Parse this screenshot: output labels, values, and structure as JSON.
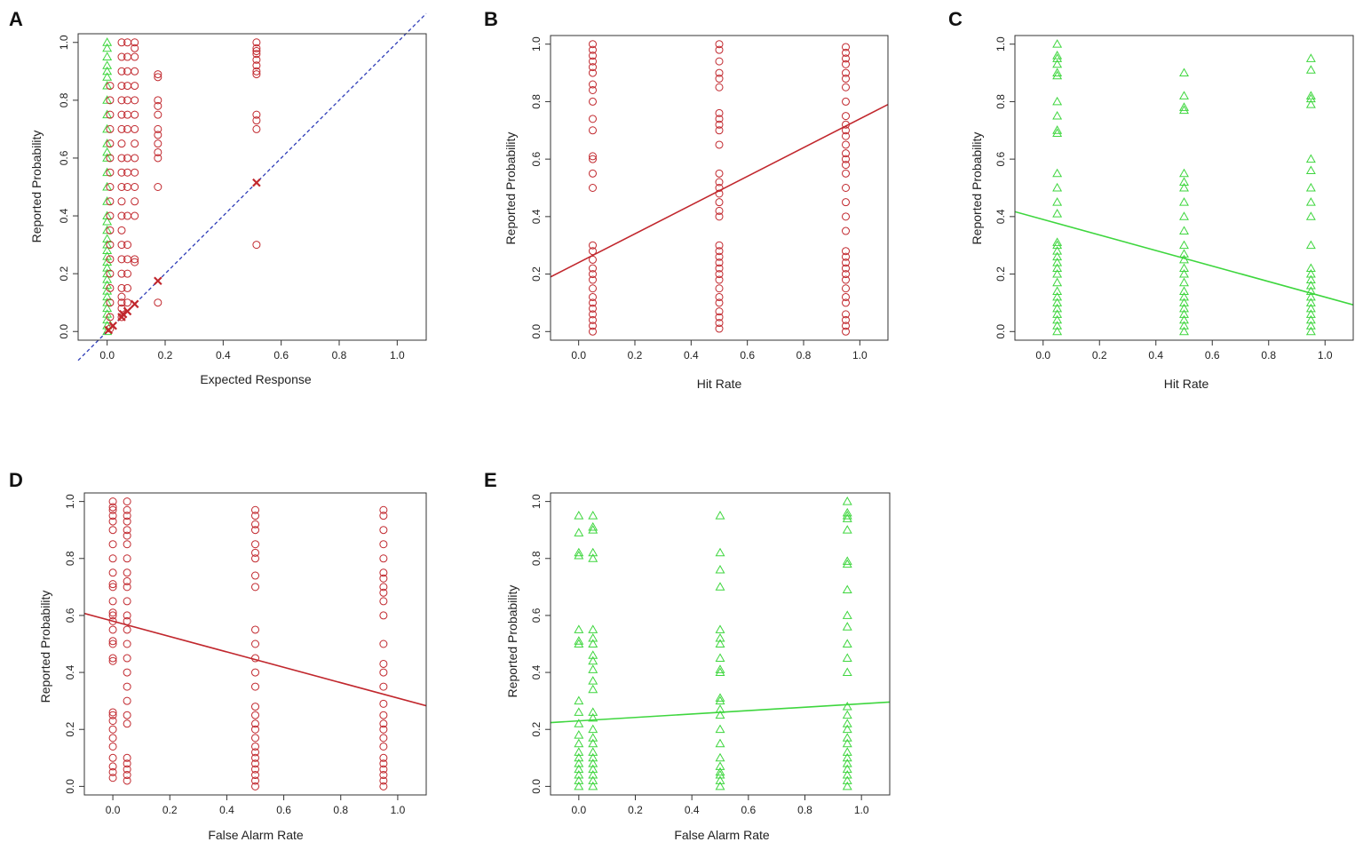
{
  "colors": {
    "red": "#c1272d",
    "green": "#3ed63e",
    "blue": "#2e3db8",
    "axis": "#333333"
  },
  "chart_data": [
    {
      "panel": "A",
      "type": "scatter",
      "xlabel": "Expected Response",
      "ylabel": "Reported Probability",
      "xlim": [
        -0.1,
        1.1
      ],
      "ylim": [
        -0.03,
        1.03
      ],
      "xticks": [
        "0.0",
        "0.2",
        "0.4",
        "0.6",
        "0.8",
        "1.0"
      ],
      "yticks": [
        "0.0",
        "0.2",
        "0.4",
        "0.6",
        "0.8",
        "1.0"
      ],
      "reference_line": {
        "from": [
          -0.1,
          -0.1
        ],
        "to": [
          1.1,
          1.1
        ],
        "color": "blue",
        "dashed": true
      },
      "columns": [
        {
          "x": 0.0,
          "marker": "triangle",
          "color": "green",
          "y": [
            0.0,
            0.02,
            0.04,
            0.06,
            0.08,
            0.1,
            0.12,
            0.14,
            0.16,
            0.18,
            0.2,
            0.22,
            0.24,
            0.26,
            0.28,
            0.3,
            0.32,
            0.35,
            0.38,
            0.4,
            0.45,
            0.5,
            0.55,
            0.6,
            0.62,
            0.65,
            0.7,
            0.75,
            0.8,
            0.85,
            0.88,
            0.9,
            0.92,
            0.95,
            0.98,
            1.0
          ]
        },
        {
          "x": 0.01,
          "marker": "circle",
          "color": "red",
          "y": [
            0.01,
            0.05,
            0.1,
            0.15,
            0.2,
            0.25,
            0.3,
            0.35,
            0.4,
            0.45,
            0.5,
            0.55,
            0.6,
            0.65,
            0.7,
            0.75,
            0.8,
            0.85
          ]
        },
        {
          "x": 0.05,
          "marker": "circle",
          "color": "red",
          "y": [
            0.05,
            0.08,
            0.1,
            0.12,
            0.15,
            0.2,
            0.25,
            0.3,
            0.35,
            0.4,
            0.45,
            0.5,
            0.55,
            0.6,
            0.65,
            0.7,
            0.75,
            0.8,
            0.85,
            0.9,
            0.95,
            1.0
          ]
        },
        {
          "x": 0.07,
          "marker": "circle",
          "color": "red",
          "y": [
            0.1,
            0.15,
            0.2,
            0.25,
            0.3,
            0.4,
            0.5,
            0.55,
            0.6,
            0.7,
            0.75,
            0.8,
            0.85,
            0.9,
            0.95,
            1.0
          ]
        },
        {
          "x": 0.095,
          "marker": "circle",
          "color": "red",
          "y": [
            0.24,
            0.25,
            0.4,
            0.45,
            0.5,
            0.55,
            0.6,
            0.65,
            0.7,
            0.75,
            0.8,
            0.85,
            0.9,
            0.95,
            0.98,
            1.0
          ]
        },
        {
          "x": 0.175,
          "marker": "circle",
          "color": "red",
          "y": [
            0.1,
            0.5,
            0.6,
            0.62,
            0.65,
            0.68,
            0.7,
            0.75,
            0.78,
            0.8,
            0.88,
            0.89
          ]
        },
        {
          "x": 0.515,
          "marker": "circle",
          "color": "red",
          "y": [
            0.3,
            0.7,
            0.73,
            0.75,
            0.89,
            0.9,
            0.92,
            0.94,
            0.96,
            0.97,
            0.98,
            1.0
          ]
        }
      ],
      "crosses": {
        "color": "red",
        "points": [
          [
            0.005,
            0.005
          ],
          [
            0.02,
            0.02
          ],
          [
            0.05,
            0.05
          ],
          [
            0.055,
            0.06
          ],
          [
            0.07,
            0.07
          ],
          [
            0.095,
            0.095
          ],
          [
            0.175,
            0.175
          ],
          [
            0.515,
            0.515
          ]
        ]
      }
    },
    {
      "panel": "B",
      "type": "scatter",
      "xlabel": "Hit Rate",
      "ylabel": "Reported Probability",
      "xlim": [
        -0.1,
        1.1
      ],
      "ylim": [
        -0.03,
        1.03
      ],
      "xticks": [
        "0.0",
        "0.2",
        "0.4",
        "0.6",
        "0.8",
        "1.0"
      ],
      "yticks": [
        "0.0",
        "0.2",
        "0.4",
        "0.6",
        "0.8",
        "1.0"
      ],
      "fit_line": {
        "intercept": 0.24,
        "slope": 0.5,
        "color": "red"
      },
      "columns": [
        {
          "x": 0.05,
          "marker": "circle",
          "color": "red",
          "y": [
            0.0,
            0.02,
            0.04,
            0.06,
            0.08,
            0.1,
            0.12,
            0.15,
            0.18,
            0.2,
            0.22,
            0.25,
            0.28,
            0.3,
            0.5,
            0.55,
            0.6,
            0.61,
            0.7,
            0.74,
            0.8,
            0.84,
            0.86,
            0.9,
            0.92,
            0.94,
            0.96,
            0.98,
            1.0
          ]
        },
        {
          "x": 0.5,
          "marker": "circle",
          "color": "red",
          "y": [
            0.01,
            0.03,
            0.05,
            0.07,
            0.1,
            0.12,
            0.15,
            0.18,
            0.2,
            0.22,
            0.24,
            0.26,
            0.28,
            0.3,
            0.4,
            0.42,
            0.45,
            0.48,
            0.5,
            0.52,
            0.55,
            0.65,
            0.7,
            0.72,
            0.74,
            0.76,
            0.85,
            0.88,
            0.9,
            0.94,
            0.98,
            1.0
          ]
        },
        {
          "x": 0.95,
          "marker": "circle",
          "color": "red",
          "y": [
            0.0,
            0.02,
            0.04,
            0.06,
            0.1,
            0.12,
            0.15,
            0.18,
            0.2,
            0.22,
            0.24,
            0.26,
            0.28,
            0.35,
            0.4,
            0.45,
            0.5,
            0.55,
            0.58,
            0.6,
            0.62,
            0.65,
            0.68,
            0.7,
            0.72,
            0.75,
            0.8,
            0.85,
            0.88,
            0.9,
            0.93,
            0.95,
            0.97,
            0.99
          ]
        }
      ]
    },
    {
      "panel": "C",
      "type": "scatter",
      "xlabel": "Hit Rate",
      "ylabel": "Reported Probability",
      "xlim": [
        -0.1,
        1.1
      ],
      "ylim": [
        -0.03,
        1.03
      ],
      "xticks": [
        "0.0",
        "0.2",
        "0.4",
        "0.6",
        "0.8",
        "1.0"
      ],
      "yticks": [
        "0.0",
        "0.2",
        "0.4",
        "0.6",
        "0.8",
        "1.0"
      ],
      "fit_line": {
        "intercept": 0.39,
        "slope": -0.27,
        "color": "green"
      },
      "columns": [
        {
          "x": 0.05,
          "marker": "triangle",
          "color": "green",
          "y": [
            0.0,
            0.02,
            0.04,
            0.06,
            0.08,
            0.1,
            0.12,
            0.14,
            0.17,
            0.2,
            0.22,
            0.24,
            0.26,
            0.28,
            0.3,
            0.31,
            0.41,
            0.45,
            0.5,
            0.55,
            0.69,
            0.7,
            0.75,
            0.8,
            0.89,
            0.9,
            0.93,
            0.95,
            0.96,
            1.0
          ]
        },
        {
          "x": 0.5,
          "marker": "triangle",
          "color": "green",
          "y": [
            0.0,
            0.02,
            0.04,
            0.06,
            0.08,
            0.1,
            0.12,
            0.14,
            0.17,
            0.2,
            0.22,
            0.25,
            0.27,
            0.3,
            0.35,
            0.4,
            0.45,
            0.5,
            0.52,
            0.55,
            0.77,
            0.78,
            0.82,
            0.9
          ]
        },
        {
          "x": 0.95,
          "marker": "triangle",
          "color": "green",
          "y": [
            0.0,
            0.02,
            0.04,
            0.06,
            0.08,
            0.1,
            0.12,
            0.14,
            0.16,
            0.18,
            0.2,
            0.22,
            0.3,
            0.4,
            0.45,
            0.5,
            0.56,
            0.6,
            0.79,
            0.81,
            0.82,
            0.91,
            0.95
          ]
        }
      ]
    },
    {
      "panel": "D",
      "type": "scatter",
      "xlabel": "False Alarm Rate",
      "ylabel": "Reported Probability",
      "xlim": [
        -0.1,
        1.1
      ],
      "ylim": [
        -0.03,
        1.03
      ],
      "xticks": [
        "0.0",
        "0.2",
        "0.4",
        "0.6",
        "0.8",
        "1.0"
      ],
      "yticks": [
        "0.0",
        "0.2",
        "0.4",
        "0.6",
        "0.8",
        "1.0"
      ],
      "fit_line": {
        "intercept": 0.58,
        "slope": -0.27,
        "color": "red"
      },
      "columns": [
        {
          "x": 0.0,
          "marker": "circle",
          "color": "red",
          "y": [
            0.03,
            0.05,
            0.07,
            0.1,
            0.14,
            0.17,
            0.2,
            0.23,
            0.25,
            0.26,
            0.44,
            0.45,
            0.5,
            0.51,
            0.55,
            0.58,
            0.6,
            0.61,
            0.65,
            0.7,
            0.71,
            0.75,
            0.8,
            0.85,
            0.9,
            0.93,
            0.95,
            0.97,
            0.98,
            1.0
          ]
        },
        {
          "x": 0.05,
          "marker": "circle",
          "color": "red",
          "y": [
            0.02,
            0.04,
            0.06,
            0.08,
            0.1,
            0.22,
            0.25,
            0.3,
            0.35,
            0.4,
            0.45,
            0.5,
            0.55,
            0.58,
            0.6,
            0.65,
            0.7,
            0.72,
            0.75,
            0.8,
            0.85,
            0.88,
            0.9,
            0.93,
            0.95,
            0.97,
            1.0
          ]
        },
        {
          "x": 0.5,
          "marker": "circle",
          "color": "red",
          "y": [
            0.0,
            0.02,
            0.04,
            0.06,
            0.08,
            0.1,
            0.12,
            0.14,
            0.17,
            0.2,
            0.22,
            0.25,
            0.28,
            0.35,
            0.4,
            0.45,
            0.5,
            0.55,
            0.7,
            0.74,
            0.8,
            0.82,
            0.85,
            0.9,
            0.92,
            0.95,
            0.97
          ]
        },
        {
          "x": 0.95,
          "marker": "circle",
          "color": "red",
          "y": [
            0.0,
            0.02,
            0.04,
            0.06,
            0.08,
            0.1,
            0.14,
            0.17,
            0.2,
            0.22,
            0.25,
            0.29,
            0.35,
            0.4,
            0.43,
            0.5,
            0.6,
            0.65,
            0.68,
            0.7,
            0.73,
            0.75,
            0.8,
            0.85,
            0.9,
            0.95,
            0.97
          ]
        }
      ]
    },
    {
      "panel": "E",
      "type": "scatter",
      "xlabel": "False Alarm Rate",
      "ylabel": "Reported Probability",
      "xlim": [
        -0.1,
        1.1
      ],
      "ylim": [
        -0.03,
        1.03
      ],
      "xticks": [
        "0.0",
        "0.2",
        "0.4",
        "0.6",
        "0.8",
        "1.0"
      ],
      "yticks": [
        "0.0",
        "0.2",
        "0.4",
        "0.6",
        "0.8",
        "1.0"
      ],
      "fit_line": {
        "intercept": 0.23,
        "slope": 0.06,
        "color": "green"
      },
      "columns": [
        {
          "x": 0.0,
          "marker": "triangle",
          "color": "green",
          "y": [
            0.0,
            0.02,
            0.04,
            0.06,
            0.08,
            0.1,
            0.12,
            0.15,
            0.18,
            0.22,
            0.26,
            0.3,
            0.5,
            0.51,
            0.55,
            0.81,
            0.82,
            0.89,
            0.95
          ]
        },
        {
          "x": 0.05,
          "marker": "triangle",
          "color": "green",
          "y": [
            0.0,
            0.02,
            0.04,
            0.06,
            0.08,
            0.1,
            0.12,
            0.15,
            0.17,
            0.2,
            0.24,
            0.26,
            0.34,
            0.37,
            0.41,
            0.44,
            0.46,
            0.5,
            0.52,
            0.55,
            0.8,
            0.82,
            0.9,
            0.91,
            0.95
          ]
        },
        {
          "x": 0.5,
          "marker": "triangle",
          "color": "green",
          "y": [
            0.0,
            0.02,
            0.04,
            0.05,
            0.07,
            0.1,
            0.15,
            0.2,
            0.25,
            0.27,
            0.3,
            0.31,
            0.4,
            0.41,
            0.45,
            0.5,
            0.52,
            0.55,
            0.7,
            0.76,
            0.82,
            0.95
          ]
        },
        {
          "x": 0.95,
          "marker": "triangle",
          "color": "green",
          "y": [
            0.0,
            0.02,
            0.04,
            0.06,
            0.08,
            0.1,
            0.12,
            0.15,
            0.17,
            0.2,
            0.22,
            0.25,
            0.28,
            0.4,
            0.45,
            0.5,
            0.56,
            0.6,
            0.69,
            0.78,
            0.79,
            0.9,
            0.94,
            0.95,
            0.96,
            1.0
          ]
        }
      ]
    }
  ]
}
